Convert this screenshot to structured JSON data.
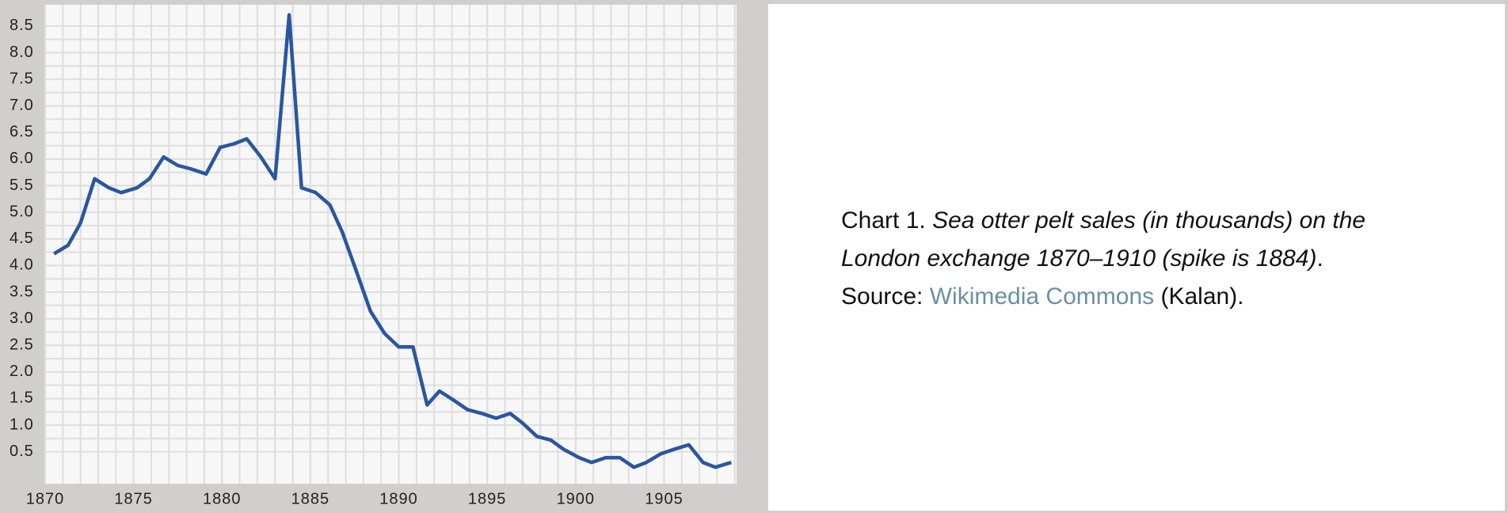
{
  "chart_data": {
    "type": "line",
    "x": [
      1870.5,
      1871.3,
      1872.0,
      1872.8,
      1873.6,
      1874.3,
      1875.2,
      1875.9,
      1876.7,
      1877.5,
      1878.3,
      1879.1,
      1879.9,
      1880.7,
      1881.4,
      1882.2,
      1883.0,
      1883.8,
      1884.5,
      1885.3,
      1886.1,
      1886.8,
      1887.6,
      1888.4,
      1889.2,
      1890.0,
      1890.8,
      1891.6,
      1892.3,
      1893.1,
      1893.9,
      1894.7,
      1895.5,
      1896.3,
      1897.0,
      1897.8,
      1898.6,
      1899.3,
      1900.2,
      1900.9,
      1901.7,
      1902.5,
      1903.3,
      1904.0,
      1904.8,
      1905.6,
      1906.4,
      1907.2,
      1907.9,
      1908.8
    ],
    "series": [
      {
        "color": "#2a56a0",
        "values": [
          4.22,
          4.38,
          4.8,
          5.63,
          5.46,
          5.37,
          5.46,
          5.63,
          6.04,
          5.88,
          5.81,
          5.72,
          6.22,
          6.29,
          6.38,
          6.04,
          5.63,
          8.71,
          5.46,
          5.37,
          5.14,
          4.63,
          3.89,
          3.14,
          2.72,
          2.47,
          2.47,
          1.38,
          1.64,
          1.47,
          1.29,
          1.22,
          1.13,
          1.22,
          1.04,
          0.79,
          0.72,
          0.55,
          0.39,
          0.3,
          0.39,
          0.39,
          0.21,
          0.3,
          0.46,
          0.55,
          0.63,
          0.3,
          0.21,
          0.3
        ]
      }
    ],
    "xlim": [
      1870,
      1909.1
    ],
    "ylim": [
      -0.1,
      8.9
    ],
    "xticks": [
      1870,
      1875,
      1880,
      1885,
      1890,
      1895,
      1900,
      1905
    ],
    "yticks": [
      0.5,
      {
        "value": 1,
        "label": "1.0"
      },
      1.5,
      {
        "value": 2,
        "label": "2.0"
      },
      2.5,
      {
        "value": 3,
        "label": "3.0"
      },
      3.5,
      {
        "value": 4,
        "label": "4.0"
      },
      4.5,
      {
        "value": 5,
        "label": "5.0"
      },
      5.5,
      {
        "value": 6,
        "label": "6.0"
      },
      6.5,
      {
        "value": 7,
        "label": "7.0"
      },
      7.5,
      {
        "value": 8,
        "label": "8.0"
      },
      8.5
    ],
    "grid": true
  },
  "caption": {
    "label": "Chart 1.",
    "title": "Sea otter pelt sales (in thousands) on the London exchange 1870–1910 (spike is 1884)",
    "source_label": ". Source:",
    "link": "Wikimedia Commons",
    "credit": "(Kalan)."
  }
}
